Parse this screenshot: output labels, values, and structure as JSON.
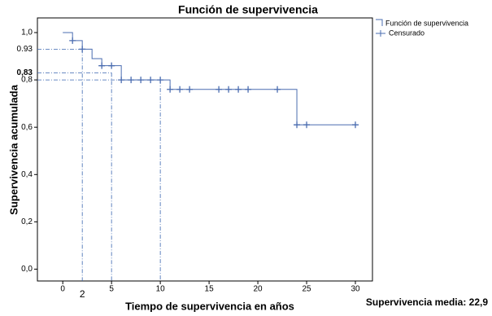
{
  "chart_data": {
    "type": "step",
    "title": "Función de supervivencia",
    "x_label": "Tiempo de supervivencia en años",
    "y_label": "Supervivencia acumulada",
    "footnote": "Supervivencia media: 22,9",
    "series": [
      {
        "name": "Función de supervivencia",
        "color": "#4a6cb0",
        "x": [
          0,
          1,
          2,
          3,
          4,
          6,
          11,
          24,
          30
        ],
        "values": [
          1,
          0.966,
          0.93,
          0.89,
          0.86,
          0.8,
          0.76,
          0.61,
          0.61
        ]
      },
      {
        "name": "Censurado",
        "color": "#4a6cb0",
        "x": [
          1,
          2,
          4,
          5,
          6,
          7,
          8,
          9,
          10,
          11,
          12,
          13,
          16,
          17,
          18,
          19,
          22,
          24,
          25,
          30
        ],
        "values": [
          0.966,
          0.93,
          0.86,
          0.86,
          0.8,
          0.8,
          0.8,
          0.8,
          0.8,
          0.76,
          0.76,
          0.76,
          0.76,
          0.76,
          0.76,
          0.76,
          0.76,
          0.61,
          0.61,
          0.61
        ]
      }
    ],
    "reference_lines": [
      {
        "x": 2,
        "y": 0.93
      },
      {
        "x": 5,
        "y": 0.83
      },
      {
        "x": 10,
        "y": 0.8
      }
    ],
    "x_annotations": [
      2
    ],
    "y_annotations": [
      {
        "value": 0.93,
        "label": "0.93"
      },
      {
        "value": 0.83,
        "label": "0,83"
      }
    ],
    "xlim": [
      -2.6,
      31.75
    ],
    "ylim": [
      -0.05,
      1.062
    ],
    "xticks": [
      0,
      5,
      10,
      15,
      20,
      25,
      30
    ],
    "yticks": [
      {
        "value": 0,
        "label": "0,0"
      },
      {
        "value": 0.2,
        "label": "0,2"
      },
      {
        "value": 0.4,
        "label": "0,4"
      },
      {
        "value": 0.6,
        "label": "0,6"
      },
      {
        "value": 0.8,
        "label": "0,8"
      },
      {
        "value": 1,
        "label": "1,0"
      }
    ]
  }
}
